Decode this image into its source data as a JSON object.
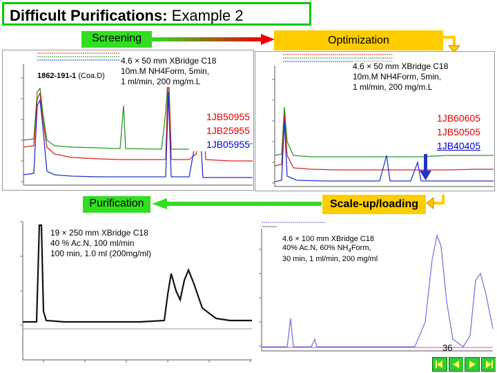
{
  "slide": {
    "title_bold": "Difficult Purifications:",
    "title_rest": " Example 2",
    "page_number": "36"
  },
  "steps": {
    "screening": "Screening",
    "optimization": "Optimization",
    "purification": "Purification",
    "scaleup": "Scale-up/loading"
  },
  "screening": {
    "compound_id": "1862-191-1",
    "compound_suffix": " (Coa.D)",
    "conditions": "4.6 × 50 mm XBridge C18\n10m.M NH4Form, 5min,\n1 ml/min, 200 mg/m.L",
    "batches": [
      "1JB50955",
      "1JB25955",
      "1JB05955"
    ],
    "batch_colors": [
      "#dd0000",
      "#dd0000",
      "#0000cc"
    ]
  },
  "optimization": {
    "conditions": "4.6 × 50 mm XBridge C18\n10m.M NH4Form, 5min,\n1 ml/min, 200 mg/m.L",
    "batches": [
      "1JB60605",
      "1JB50505",
      "1JB40405"
    ],
    "batch_colors": [
      "#dd0000",
      "#dd0000",
      "#0000cc"
    ]
  },
  "purification": {
    "conditions": "19 × 250 mm XBridge C18\n40 % Ac.N, 100 ml/min\n100 min, 1.0 ml (200mg/ml)"
  },
  "scaleup": {
    "conditions_line1": "4.6 × 100 mm XBridge C18",
    "conditions_line2_pre": "40% Ac.N, 60% NH",
    "conditions_line2_sub": "4",
    "conditions_line2_post": "Form,",
    "conditions_line3": "30 min, 1 ml/min, 200 mg/ml"
  },
  "colors": {
    "title_border": "#00c800",
    "arrow_green": "#33dd22",
    "arrow_red": "#ee0000",
    "pill_yellow": "#ffcc00",
    "trace_red": "#dd2222",
    "trace_green": "#229922",
    "trace_blue": "#2233cc",
    "trace_purple": "#7777dd"
  }
}
